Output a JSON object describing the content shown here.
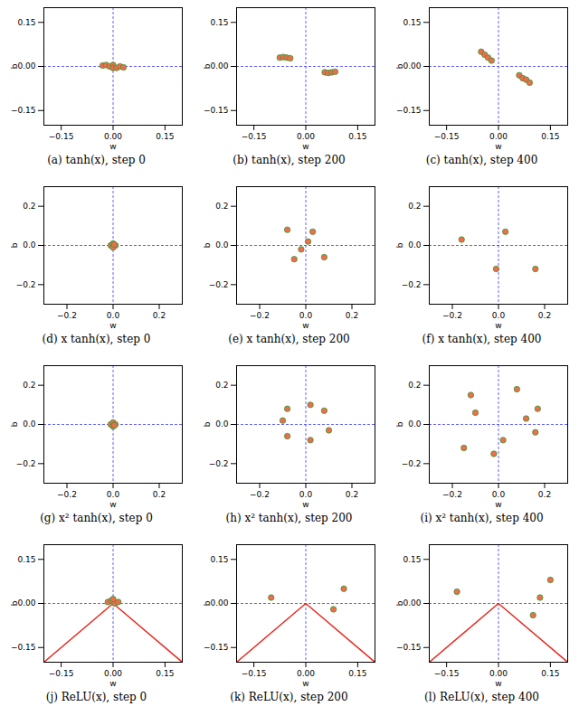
{
  "chart_data": [
    {
      "type": "scatter",
      "title": "(a) tanh(x), step 0",
      "x_label": "w",
      "y_label": "b",
      "xlim": [
        -0.2,
        0.2
      ],
      "ylim": [
        -0.2,
        0.2
      ],
      "xticks": [
        {
          "value": -0.15,
          "label": "−0.15"
        },
        {
          "value": 0,
          "label": "0.00"
        },
        0.15
      ],
      "yticks": [
        {
          "value": -0.15,
          "label": "−0.15"
        },
        {
          "value": 0,
          "label": "0.00"
        },
        0.15
      ],
      "vlines": [
        0
      ],
      "hlines": [
        0
      ],
      "series": [
        {
          "type": "scatter",
          "color": "#f26b4a",
          "marker": "o",
          "x": [
            -0.03,
            -0.02,
            -0.01,
            0.0,
            0.0,
            0.01,
            0.02,
            0.03
          ],
          "values": [
            0.003,
            0.005,
            0.0,
            0.005,
            -0.005,
            -0.005,
            0.0,
            -0.003
          ]
        }
      ]
    },
    {
      "type": "scatter",
      "title": "(b) tanh(x), step 200",
      "x_label": "w",
      "y_label": "b",
      "xlim": [
        -0.2,
        0.2
      ],
      "ylim": [
        -0.2,
        0.2
      ],
      "xticks": [
        {
          "value": -0.15,
          "label": "−0.15"
        },
        {
          "value": 0,
          "label": "0.00"
        },
        0.15
      ],
      "yticks": [
        {
          "value": -0.15,
          "label": "−0.15"
        },
        {
          "value": 0,
          "label": "0.00"
        },
        0.15
      ],
      "vlines": [
        0
      ],
      "hlines": [
        0
      ],
      "series": [
        {
          "type": "scatter",
          "color": "#f26b4a",
          "marker": "o",
          "x": [
            -0.075,
            -0.065,
            -0.055,
            -0.045,
            0.055,
            0.065,
            0.075,
            0.085
          ],
          "values": [
            0.03,
            0.032,
            0.03,
            0.028,
            -0.02,
            -0.022,
            -0.02,
            -0.018
          ]
        }
      ]
    },
    {
      "type": "scatter",
      "title": "(c) tanh(x), step 400",
      "x_label": "w",
      "y_label": "b",
      "xlim": [
        -0.2,
        0.2
      ],
      "ylim": [
        -0.2,
        0.2
      ],
      "xticks": [
        {
          "value": -0.15,
          "label": "−0.15"
        },
        {
          "value": 0,
          "label": "0.00"
        },
        0.15
      ],
      "yticks": [
        {
          "value": -0.15,
          "label": "−0.15"
        },
        {
          "value": 0,
          "label": "0.00"
        },
        0.15
      ],
      "vlines": [
        0
      ],
      "hlines": [
        0
      ],
      "series": [
        {
          "type": "scatter",
          "color": "#f26b4a",
          "marker": "o",
          "x": [
            -0.05,
            -0.04,
            -0.03,
            -0.02,
            0.06,
            0.07,
            0.08,
            0.09
          ],
          "values": [
            0.05,
            0.04,
            0.03,
            0.02,
            -0.03,
            -0.04,
            -0.045,
            -0.055
          ]
        }
      ]
    },
    {
      "type": "scatter",
      "title": "(d) x tanh(x), step 0",
      "x_label": "w",
      "y_label": "b",
      "xlim": [
        -0.3,
        0.3
      ],
      "ylim": [
        -0.3,
        0.3
      ],
      "xticks": [
        {
          "value": -0.2,
          "label": "−0.2"
        },
        {
          "value": 0,
          "label": "0.0"
        },
        0.2
      ],
      "yticks": [
        {
          "value": -0.2,
          "label": "−0.2"
        },
        {
          "value": 0,
          "label": "0.0"
        },
        0.2
      ],
      "vlines": [
        0
      ],
      "hlines": [
        0
      ],
      "series": [
        {
          "type": "scatter",
          "color": "#f26b4a",
          "marker": "o",
          "x": [
            -0.01,
            0.0,
            0.01,
            0.0,
            0.005
          ],
          "values": [
            0.0,
            0.01,
            0.0,
            -0.01,
            0.005
          ]
        }
      ]
    },
    {
      "type": "scatter",
      "title": "(e) x tanh(x), step 200",
      "x_label": "w",
      "y_label": "b",
      "xlim": [
        -0.3,
        0.3
      ],
      "ylim": [
        -0.3,
        0.3
      ],
      "xticks": [
        {
          "value": -0.2,
          "label": "−0.2"
        },
        {
          "value": 0,
          "label": "0.0"
        },
        0.2
      ],
      "yticks": [
        {
          "value": -0.2,
          "label": "−0.2"
        },
        {
          "value": 0,
          "label": "0.0"
        },
        0.2
      ],
      "vlines": [
        0
      ],
      "hlines": [
        0
      ],
      "series": [
        {
          "type": "scatter",
          "color": "#f26b4a",
          "marker": "o",
          "x": [
            -0.08,
            0.03,
            0.01,
            -0.02,
            -0.05,
            0.08
          ],
          "values": [
            0.08,
            0.07,
            0.02,
            -0.02,
            -0.07,
            -0.06
          ]
        }
      ]
    },
    {
      "type": "scatter",
      "title": "(f) x tanh(x), step 400",
      "x_label": "w",
      "y_label": "b",
      "xlim": [
        -0.3,
        0.3
      ],
      "ylim": [
        -0.3,
        0.3
      ],
      "xticks": [
        {
          "value": -0.2,
          "label": "−0.2"
        },
        {
          "value": 0,
          "label": "0.0"
        },
        0.2
      ],
      "yticks": [
        {
          "value": -0.2,
          "label": "−0.2"
        },
        {
          "value": 0,
          "label": "0.0"
        },
        0.2
      ],
      "vlines": [
        0
      ],
      "hlines": [
        0
      ],
      "series": [
        {
          "type": "scatter",
          "color": "#f26b4a",
          "marker": "o",
          "x": [
            -0.16,
            0.03,
            -0.01,
            0.16
          ],
          "values": [
            0.03,
            0.07,
            -0.12,
            -0.12
          ]
        }
      ]
    },
    {
      "type": "scatter",
      "title": "(g) x² tanh(x), step 0",
      "x_label": "w",
      "y_label": "b",
      "xlim": [
        -0.3,
        0.3
      ],
      "ylim": [
        -0.3,
        0.3
      ],
      "xticks": [
        {
          "value": -0.2,
          "label": "−0.2"
        },
        {
          "value": 0,
          "label": "0.0"
        },
        0.2
      ],
      "yticks": [
        {
          "value": -0.2,
          "label": "−0.2"
        },
        {
          "value": 0,
          "label": "0.0"
        },
        0.2
      ],
      "vlines": [
        0
      ],
      "hlines": [
        0
      ],
      "series": [
        {
          "type": "scatter",
          "color": "#f26b4a",
          "marker": "o",
          "x": [
            -0.01,
            0.0,
            0.01,
            0.0,
            0.005
          ],
          "values": [
            0.0,
            0.01,
            0.0,
            -0.01,
            -0.005
          ]
        }
      ]
    },
    {
      "type": "scatter",
      "title": "(h) x² tanh(x), step 200",
      "x_label": "w",
      "y_label": "b",
      "xlim": [
        -0.3,
        0.3
      ],
      "ylim": [
        -0.3,
        0.3
      ],
      "xticks": [
        {
          "value": -0.2,
          "label": "−0.2"
        },
        {
          "value": 0,
          "label": "0.0"
        },
        0.2
      ],
      "yticks": [
        {
          "value": -0.2,
          "label": "−0.2"
        },
        {
          "value": 0,
          "label": "0.0"
        },
        0.2
      ],
      "vlines": [
        0
      ],
      "hlines": [
        0
      ],
      "series": [
        {
          "type": "scatter",
          "color": "#f26b4a",
          "marker": "o",
          "x": [
            -0.08,
            0.02,
            0.08,
            0.1,
            0.02,
            -0.08,
            -0.1
          ],
          "values": [
            0.08,
            0.1,
            0.07,
            -0.03,
            -0.08,
            -0.06,
            0.02
          ]
        }
      ]
    },
    {
      "type": "scatter",
      "title": "(i) x² tanh(x), step 400",
      "x_label": "w",
      "y_label": "b",
      "xlim": [
        -0.3,
        0.3
      ],
      "ylim": [
        -0.3,
        0.3
      ],
      "xticks": [
        {
          "value": -0.2,
          "label": "−0.2"
        },
        {
          "value": 0,
          "label": "0.0"
        },
        0.2
      ],
      "yticks": [
        {
          "value": -0.2,
          "label": "−0.2"
        },
        {
          "value": 0,
          "label": "0.0"
        },
        0.2
      ],
      "vlines": [
        0
      ],
      "hlines": [
        0
      ],
      "series": [
        {
          "type": "scatter",
          "color": "#f26b4a",
          "marker": "o",
          "x": [
            -0.12,
            0.08,
            0.17,
            0.16,
            0.02,
            -0.15,
            -0.02,
            0.12,
            -0.1
          ],
          "values": [
            0.15,
            0.18,
            0.08,
            -0.04,
            -0.08,
            -0.12,
            -0.15,
            0.03,
            0.06
          ]
        }
      ]
    },
    {
      "type": "scatter",
      "title": "(j) ReLU(x), step 0",
      "x_label": "w",
      "y_label": "b",
      "xlim": [
        -0.2,
        0.2
      ],
      "ylim": [
        -0.2,
        0.2
      ],
      "xticks": [
        {
          "value": -0.15,
          "label": "−0.15"
        },
        {
          "value": 0,
          "label": "0.00"
        },
        0.15
      ],
      "yticks": [
        {
          "value": -0.15,
          "label": "−0.15"
        },
        {
          "value": 0,
          "label": "0.00"
        },
        0.15
      ],
      "vlines": [
        0
      ],
      "hlines": [
        0
      ],
      "series": [
        {
          "type": "line",
          "color": "#e8281e",
          "line_style": "solid",
          "x": [
            -0.2,
            0.0,
            0.2
          ],
          "values": [
            -0.2,
            0.0,
            -0.2
          ]
        },
        {
          "type": "scatter",
          "color": "#f26b4a",
          "marker": "o",
          "x": [
            -0.015,
            -0.005,
            0.005,
            0.015,
            0.0
          ],
          "values": [
            0.005,
            0.01,
            0.0,
            0.005,
            0.015
          ]
        }
      ]
    },
    {
      "type": "scatter",
      "title": "(k) ReLU(x), step 200",
      "x_label": "w",
      "y_label": "b",
      "xlim": [
        -0.2,
        0.2
      ],
      "ylim": [
        -0.2,
        0.2
      ],
      "xticks": [
        {
          "value": -0.15,
          "label": "−0.15"
        },
        {
          "value": 0,
          "label": "0.00"
        },
        0.15
      ],
      "yticks": [
        {
          "value": -0.15,
          "label": "−0.15"
        },
        {
          "value": 0,
          "label": "0.00"
        },
        0.15
      ],
      "vlines": [
        0
      ],
      "hlines": [
        0
      ],
      "series": [
        {
          "type": "line",
          "color": "#e8281e",
          "line_style": "solid",
          "x": [
            -0.2,
            0.0,
            0.2
          ],
          "values": [
            -0.2,
            0.0,
            -0.2
          ]
        },
        {
          "type": "scatter",
          "color": "#f26b4a",
          "marker": "o",
          "x": [
            -0.1,
            0.11,
            0.08
          ],
          "values": [
            0.02,
            0.05,
            -0.02
          ]
        }
      ]
    },
    {
      "type": "scatter",
      "title": "(l) ReLU(x), step 400",
      "x_label": "w",
      "y_label": "b",
      "xlim": [
        -0.2,
        0.2
      ],
      "ylim": [
        -0.2,
        0.2
      ],
      "xticks": [
        {
          "value": -0.15,
          "label": "−0.15"
        },
        {
          "value": 0,
          "label": "0.00"
        },
        0.15
      ],
      "yticks": [
        {
          "value": -0.15,
          "label": "−0.15"
        },
        {
          "value": 0,
          "label": "0.00"
        },
        0.15
      ],
      "vlines": [
        0
      ],
      "hlines": [
        0
      ],
      "series": [
        {
          "type": "line",
          "color": "#e8281e",
          "line_style": "solid",
          "x": [
            -0.2,
            0.0,
            0.2
          ],
          "values": [
            -0.2,
            0.0,
            -0.2
          ]
        },
        {
          "type": "scatter",
          "color": "#f26b4a",
          "marker": "o",
          "x": [
            -0.12,
            0.15,
            0.12,
            0.1
          ],
          "values": [
            0.04,
            0.08,
            0.02,
            -0.04
          ]
        }
      ]
    }
  ]
}
